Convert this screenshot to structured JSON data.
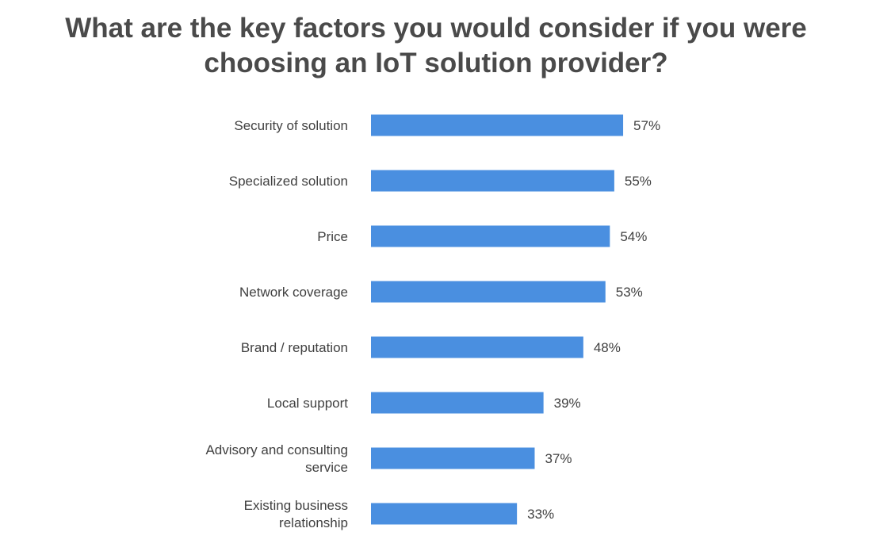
{
  "chart_data": {
    "type": "bar",
    "orientation": "horizontal",
    "title_lines": [
      "What are the key factors you would consider if you were",
      "choosing an IoT solution provider?"
    ],
    "categories": [
      [
        "Security of solution"
      ],
      [
        "Specialized solution"
      ],
      [
        "Price"
      ],
      [
        "Network coverage"
      ],
      [
        "Brand / reputation"
      ],
      [
        "Local support"
      ],
      [
        "Advisory and consulting",
        "service"
      ],
      [
        "Existing business",
        "relationship"
      ]
    ],
    "values": [
      57,
      55,
      54,
      53,
      48,
      39,
      37,
      33
    ],
    "value_labels": [
      "57%",
      "55%",
      "54%",
      "53%",
      "48%",
      "39%",
      "37%",
      "33%"
    ],
    "bar_color": "#4a8fe0",
    "grid": false,
    "legend": "none"
  }
}
